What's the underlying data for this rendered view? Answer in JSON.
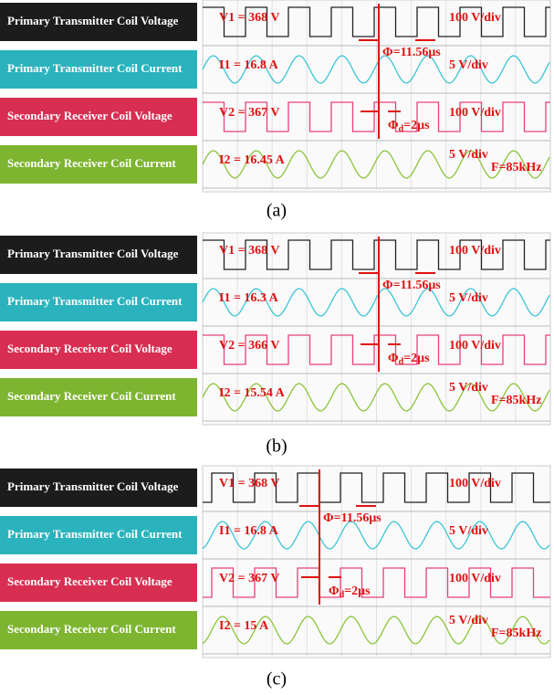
{
  "panels": [
    {
      "caption": "(a)",
      "rows": [
        {
          "label": "Primary Transmitter Coil Voltage",
          "reading": "V1 = 368 V",
          "scale": "100 V/div"
        },
        {
          "label": "Primary Transmitter Coil Current",
          "reading": "I1 = 16.8 A",
          "scale": "5 V/div"
        },
        {
          "label": "Secondary Receiver Coil Voltage",
          "reading": "V2 = 367 V",
          "scale": "100 V/div"
        },
        {
          "label": "Secondary Receiver Coil Current",
          "reading": "I2 = 16.45 A",
          "scale": "5 V/div"
        }
      ],
      "phase": "Φ=11.56μs",
      "delay": "Φ",
      "delay_sub": "d",
      "delay_rest": "=2μs",
      "frequency": "F=85kHz"
    },
    {
      "caption": "(b)",
      "rows": [
        {
          "label": "Primary Transmitter Coil Voltage",
          "reading": "V1 = 368 V",
          "scale": "100 V/div"
        },
        {
          "label": "Primary Transmitter Coil Current",
          "reading": "I1 = 16.3 A",
          "scale": "5 V/div"
        },
        {
          "label": "Secondary Receiver Coil Voltage",
          "reading": "V2 = 366 V",
          "scale": "100 V/div"
        },
        {
          "label": "Secondary Receiver Coil Current",
          "reading": "I2 = 15.54 A",
          "scale": "5 V/div"
        }
      ],
      "phase": "Φ=11.56μs",
      "delay": "Φ",
      "delay_sub": "d",
      "delay_rest": "=2μs",
      "frequency": "F=85kHz"
    },
    {
      "caption": "(c)",
      "rows": [
        {
          "label": "Primary Transmitter Coil Voltage",
          "reading": "V1 = 368 V",
          "scale": "100 V/div"
        },
        {
          "label": "Primary Transmitter Coil Current",
          "reading": "I1 = 16.8 A",
          "scale": "5 V/div"
        },
        {
          "label": "Secondary Receiver Coil Voltage",
          "reading": "V2 = 367 V",
          "scale": "100 V/div"
        },
        {
          "label": "Secondary Receiver Coil Current",
          "reading": "I2 = 15 A",
          "scale": "5 V/div"
        }
      ],
      "phase": "Φ=11.56μs",
      "delay": "Φ",
      "delay_sub": "d",
      "delay_rest": "=2μs",
      "frequency": "F=85kHz"
    }
  ]
}
